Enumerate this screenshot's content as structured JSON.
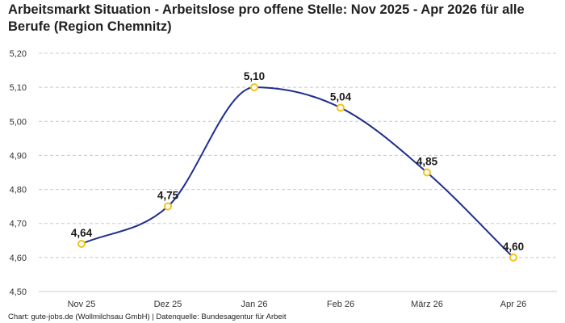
{
  "chart_data": {
    "type": "line",
    "title": "Arbeitsmarkt Situation - Arbeitslose pro offene Stelle: Nov 2025 - Apr 2026 für alle Berufe (Region Chemnitz)",
    "categories": [
      "Nov 25",
      "Dez 25",
      "Jan 26",
      "Feb 26",
      "März 26",
      "Apr 26"
    ],
    "series": [
      {
        "values": [
          4.64,
          4.75,
          5.1,
          5.04,
          4.85,
          4.6
        ]
      }
    ],
    "data_labels": [
      "4,64",
      "4,75",
      "5,10",
      "5,04",
      "4,85",
      "4,60"
    ],
    "yticks": [
      "4,50",
      "4,60",
      "4,70",
      "4,80",
      "4,90",
      "5,00",
      "5,10",
      "5,20"
    ],
    "ylim": [
      4.5,
      5.2
    ],
    "grid": true,
    "colors": {
      "line": "#1f2f8c",
      "marker_fill": "#ffffff",
      "marker_stroke": "#f0c419",
      "grid": "#c8c8c8"
    }
  },
  "footer": "Chart: gute-jobs.de (Wollmilchsau GmbH) | Datenquelle: Bundesagentur für Arbeit"
}
